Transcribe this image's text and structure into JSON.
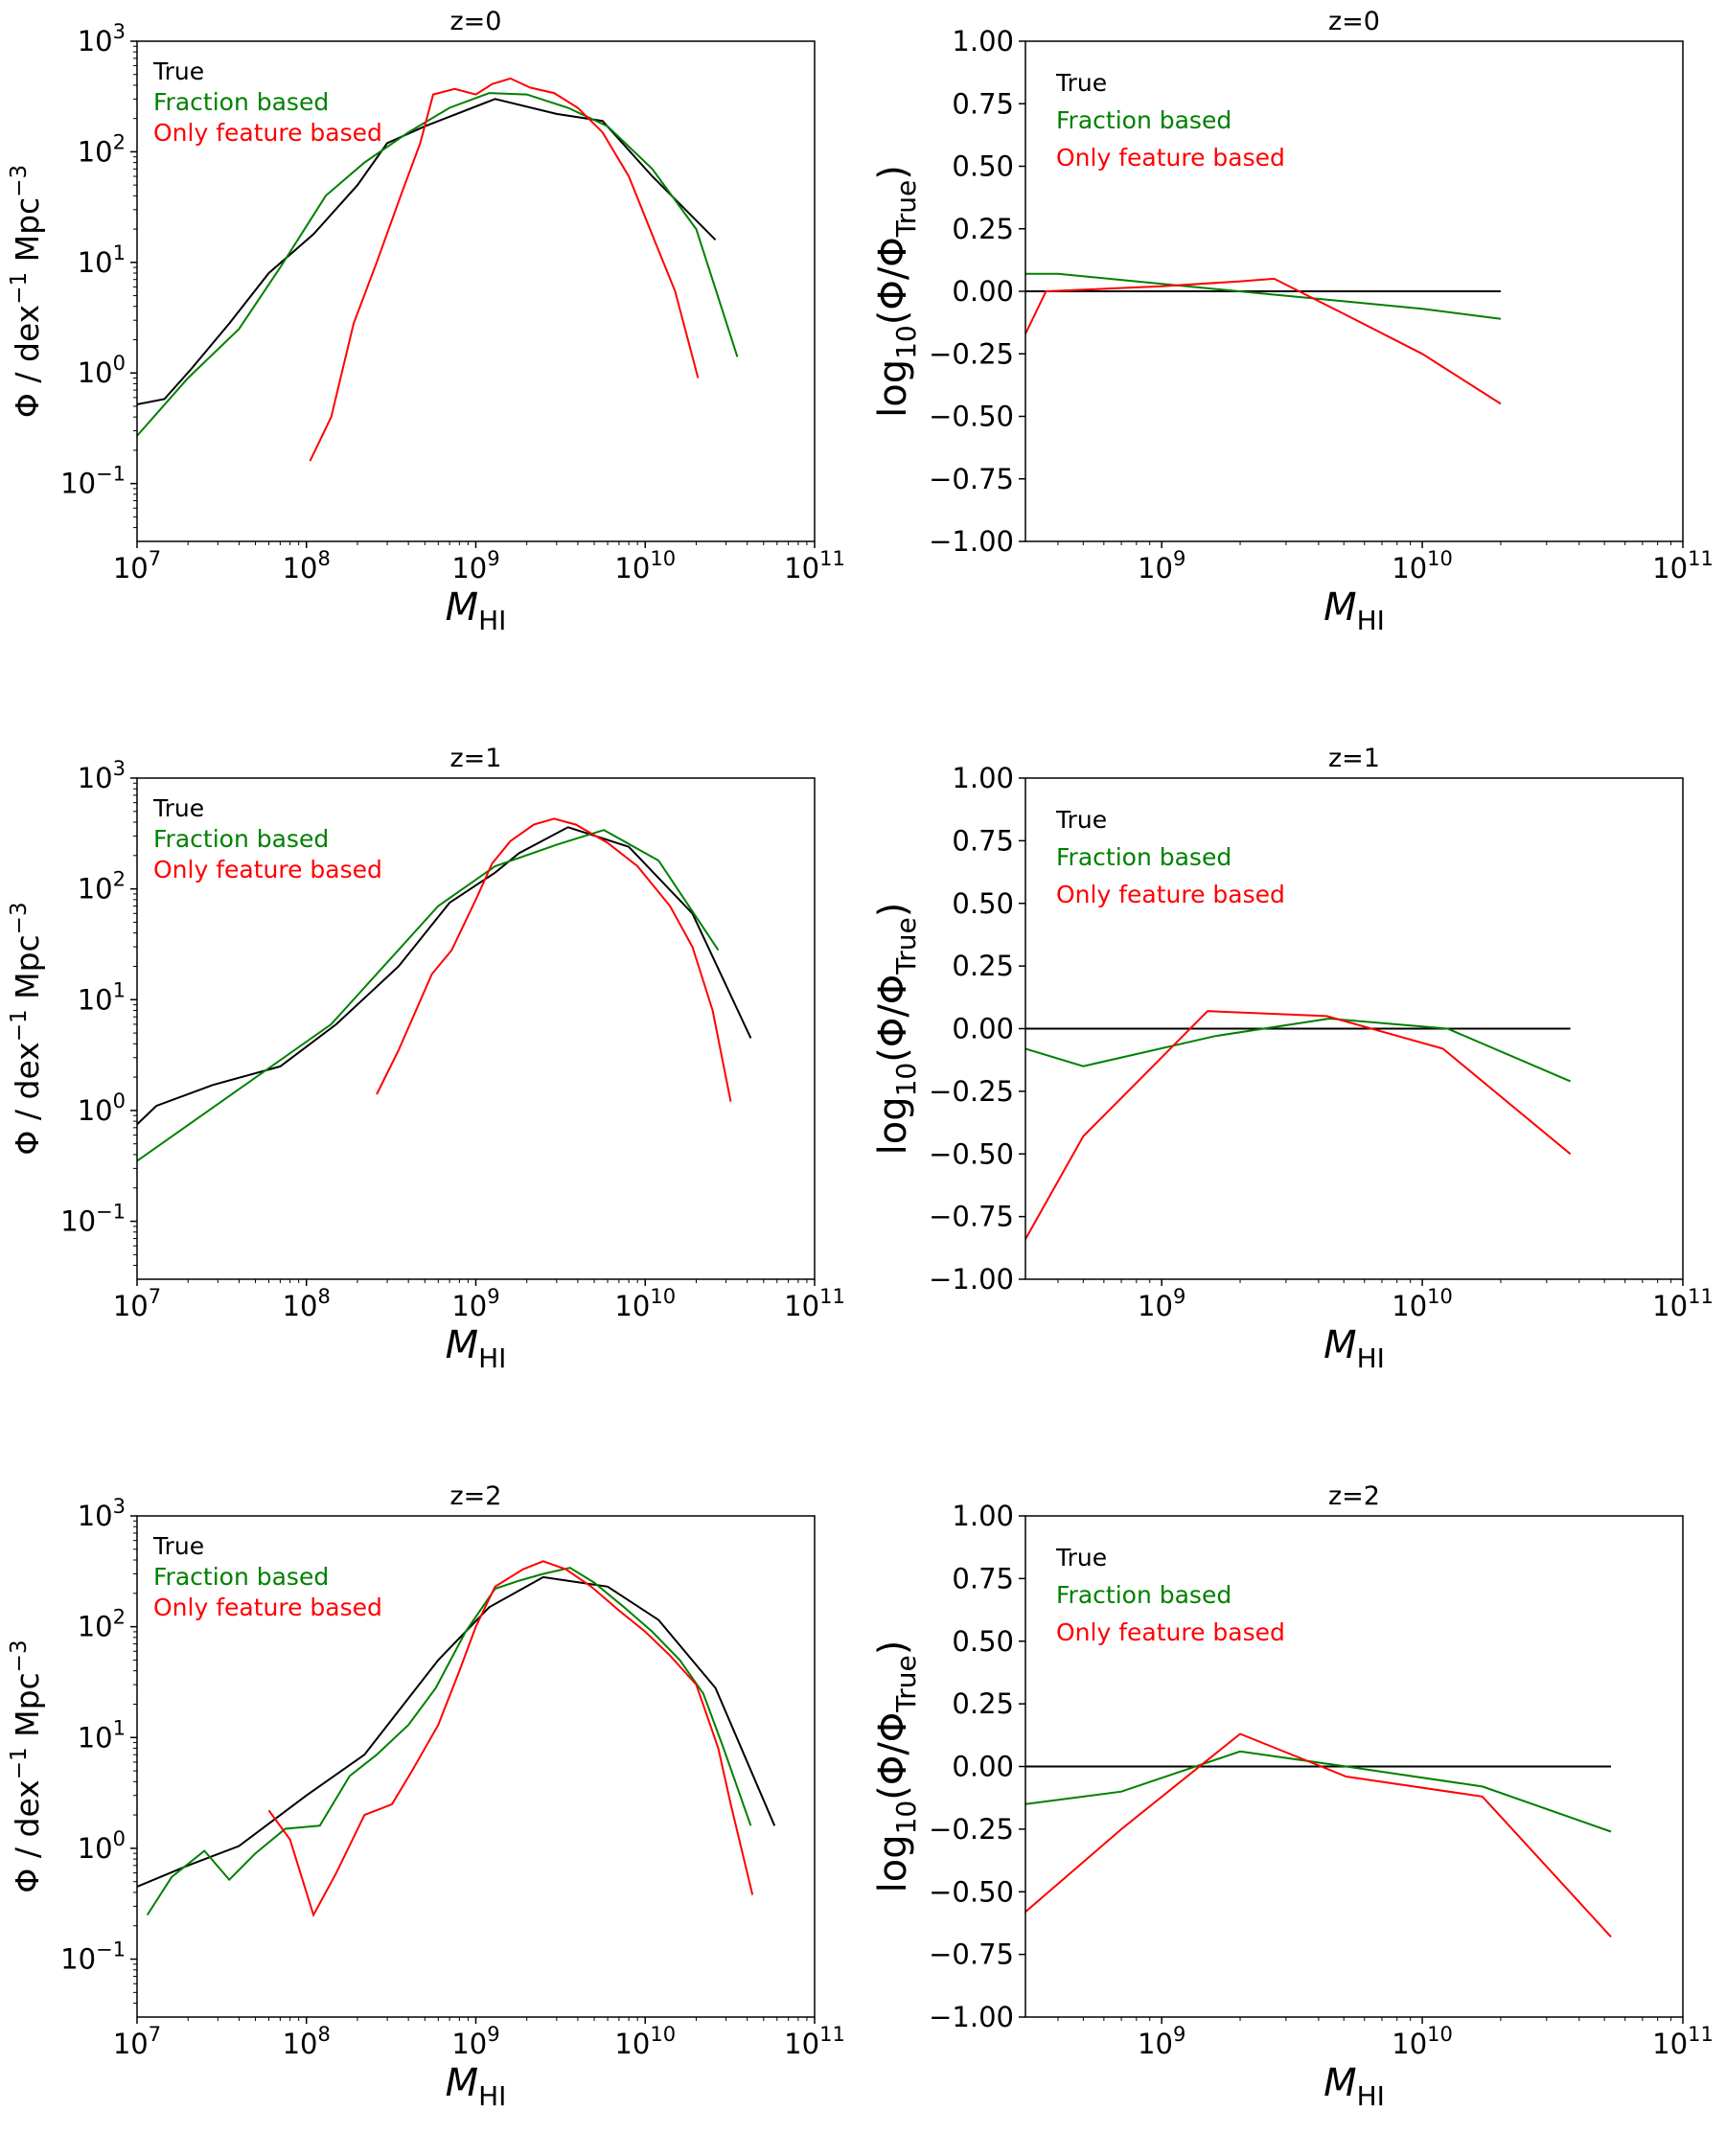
{
  "colors": {
    "true": "#000000",
    "fraction": "#008000",
    "feature": "#ff0000"
  },
  "legend": [
    "True",
    "Fraction based",
    "Only feature based"
  ],
  "chart_data": [
    {
      "type": "line",
      "title": "z=0",
      "xlabel_main": "M",
      "xlabel_sub": "HI",
      "ylabel_main": "Φ / dex",
      "ylabel_sup1": "−1",
      "ylabel_mid": " Mpc",
      "ylabel_sup2": "−3",
      "xscale": "log",
      "yscale": "log",
      "xlim": [
        10000000.0,
        100000000000.0
      ],
      "ylim": [
        0.03,
        1000
      ],
      "xticks": [
        {
          "base": "10",
          "exp": "7"
        },
        {
          "base": "10",
          "exp": "8"
        },
        {
          "base": "10",
          "exp": "9"
        },
        {
          "base": "10",
          "exp": "10"
        },
        {
          "base": "10",
          "exp": "11"
        }
      ],
      "yticks": [
        {
          "base": "10",
          "exp": "−1"
        },
        {
          "base": "10",
          "exp": "0"
        },
        {
          "base": "10",
          "exp": "1"
        },
        {
          "base": "10",
          "exp": "2"
        },
        {
          "base": "10",
          "exp": "3"
        }
      ],
      "series": [
        {
          "name": "True",
          "x": [
            10000000.0,
            14500000.0,
            21000000.0,
            35000000.0,
            60000000.0,
            110000000.0,
            200000000.0,
            300000000.0,
            500000000.0,
            1300000000.0,
            3000000000.0,
            5600000000.0,
            11000000000.0,
            26000000000.0
          ],
          "y": [
            0.52,
            0.58,
            1.1,
            2.8,
            8,
            18,
            50,
            120,
            170,
            300,
            220,
            190,
            60,
            16
          ]
        },
        {
          "name": "Fraction based",
          "x": [
            10000000.0,
            20000000.0,
            40000000.0,
            70000000.0,
            130000000.0,
            220000000.0,
            400000000.0,
            700000000.0,
            1200000000.0,
            2000000000.0,
            3500000000.0,
            6000000000.0,
            11000000000.0,
            20000000000.0,
            35000000000.0
          ],
          "y": [
            0.27,
            0.9,
            2.5,
            9,
            40,
            80,
            150,
            250,
            340,
            330,
            250,
            170,
            70,
            20,
            1.4
          ]
        },
        {
          "name": "Only feature based",
          "x": [
            105000000.0,
            140000000.0,
            190000000.0,
            260000000.0,
            360000000.0,
            470000000.0,
            560000000.0,
            750000000.0,
            1000000000.0,
            1250000000.0,
            1600000000.0,
            2100000000.0,
            2900000000.0,
            4000000000.0,
            5600000000.0,
            8000000000.0,
            11500000000.0,
            15000000000.0,
            20500000000.0
          ],
          "y": [
            0.16,
            0.4,
            2.8,
            10,
            40,
            120,
            330,
            370,
            330,
            410,
            460,
            380,
            340,
            250,
            150,
            60,
            15,
            5.5,
            0.9
          ]
        }
      ]
    },
    {
      "type": "line",
      "title": "z=0",
      "xlabel_main": "M",
      "xlabel_sub": "HI",
      "ylabel_main": "log",
      "ylabel_sub1": "10",
      "ylabel_mid": "(Φ/Φ",
      "ylabel_sub2": "True",
      "ylabel_end": ")",
      "xscale": "log",
      "yscale": "linear",
      "xlim": [
        300000000.0,
        100000000000.0
      ],
      "ylim": [
        -1,
        1
      ],
      "xticks": [
        {
          "base": "10",
          "exp": "9"
        },
        {
          "base": "10",
          "exp": "10"
        },
        {
          "base": "10",
          "exp": "11"
        }
      ],
      "yticks": [
        "−1.00",
        "−0.75",
        "−0.50",
        "−0.25",
        "0.00",
        "0.25",
        "0.50",
        "0.75",
        "1.00"
      ],
      "series": [
        {
          "name": "True",
          "x": [
            300000000.0,
            20000000000.0
          ],
          "y": [
            0,
            0
          ]
        },
        {
          "name": "Fraction based",
          "x": [
            300000000.0,
            400000000.0,
            1000000000.0,
            2500000000.0,
            5000000000.0,
            10000000000.0,
            20000000000.0
          ],
          "y": [
            0.07,
            0.07,
            0.03,
            -0.01,
            -0.04,
            -0.07,
            -0.11
          ]
        },
        {
          "name": "Only feature based",
          "x": [
            300000000.0,
            360000000.0,
            1000000000.0,
            2000000000.0,
            2700000000.0,
            5000000000.0,
            10000000000.0,
            20000000000.0
          ],
          "y": [
            -0.17,
            0.0,
            0.02,
            0.04,
            0.05,
            -0.09,
            -0.25,
            -0.45
          ]
        }
      ]
    },
    {
      "type": "line",
      "title": "z=1",
      "xlabel_main": "M",
      "xlabel_sub": "HI",
      "ylabel_main": "Φ / dex",
      "ylabel_sup1": "−1",
      "ylabel_mid": " Mpc",
      "ylabel_sup2": "−3",
      "xscale": "log",
      "yscale": "log",
      "xlim": [
        10000000.0,
        100000000000.0
      ],
      "ylim": [
        0.03,
        1000
      ],
      "xticks": [
        {
          "base": "10",
          "exp": "7"
        },
        {
          "base": "10",
          "exp": "8"
        },
        {
          "base": "10",
          "exp": "9"
        },
        {
          "base": "10",
          "exp": "10"
        },
        {
          "base": "10",
          "exp": "11"
        }
      ],
      "yticks": [
        {
          "base": "10",
          "exp": "−1"
        },
        {
          "base": "10",
          "exp": "0"
        },
        {
          "base": "10",
          "exp": "1"
        },
        {
          "base": "10",
          "exp": "2"
        },
        {
          "base": "10",
          "exp": "3"
        }
      ],
      "series": [
        {
          "name": "True",
          "x": [
            10000000.0,
            13000000.0,
            28000000.0,
            70000000.0,
            150000000.0,
            350000000.0,
            700000000.0,
            1300000000.0,
            1800000000.0,
            3500000000.0,
            8000000000.0,
            19000000000.0,
            42000000000.0
          ],
          "y": [
            0.75,
            1.1,
            1.7,
            2.5,
            6,
            20,
            75,
            140,
            210,
            360,
            240,
            60,
            4.5
          ]
        },
        {
          "name": "Fraction based",
          "x": [
            10000000.0,
            140000000.0,
            600000000.0,
            1300000000.0,
            3000000000.0,
            5700000000.0,
            12000000000.0,
            27000000000.0
          ],
          "y": [
            0.35,
            6,
            70,
            160,
            250,
            340,
            180,
            28
          ]
        },
        {
          "name": "Only feature based",
          "x": [
            260000000.0,
            350000000.0,
            550000000.0,
            720000000.0,
            1000000000.0,
            1250000000.0,
            1600000000.0,
            2200000000.0,
            2900000000.0,
            3900000000.0,
            6000000000.0,
            9000000000.0,
            14000000000.0,
            19000000000.0,
            25000000000.0,
            32000000000.0
          ],
          "y": [
            1.4,
            3.5,
            17,
            28,
            80,
            170,
            270,
            380,
            430,
            380,
            260,
            160,
            70,
            30,
            8,
            1.2
          ]
        }
      ]
    },
    {
      "type": "line",
      "title": "z=1",
      "xlabel_main": "M",
      "xlabel_sub": "HI",
      "ylabel_main": "log",
      "ylabel_sub1": "10",
      "ylabel_mid": "(Φ/Φ",
      "ylabel_sub2": "True",
      "ylabel_end": ")",
      "xscale": "log",
      "yscale": "linear",
      "xlim": [
        300000000.0,
        100000000000.0
      ],
      "ylim": [
        -1,
        1
      ],
      "xticks": [
        {
          "base": "10",
          "exp": "9"
        },
        {
          "base": "10",
          "exp": "10"
        },
        {
          "base": "10",
          "exp": "11"
        }
      ],
      "yticks": [
        "−1.00",
        "−0.75",
        "−0.50",
        "−0.25",
        "0.00",
        "0.25",
        "0.50",
        "0.75",
        "1.00"
      ],
      "series": [
        {
          "name": "True",
          "x": [
            300000000.0,
            37000000000.0
          ],
          "y": [
            0,
            0
          ]
        },
        {
          "name": "Fraction based",
          "x": [
            300000000.0,
            500000000.0,
            1600000000.0,
            4400000000.0,
            12500000000.0,
            37000000000.0
          ],
          "y": [
            -0.08,
            -0.15,
            -0.03,
            0.04,
            -0.0,
            -0.21
          ]
        },
        {
          "name": "Only feature based",
          "x": [
            300000000.0,
            500000000.0,
            1500000000.0,
            4300000000.0,
            12000000000.0,
            37000000000.0
          ],
          "y": [
            -0.84,
            -0.43,
            0.07,
            0.05,
            -0.08,
            -0.5
          ]
        }
      ]
    },
    {
      "type": "line",
      "title": "z=2",
      "xlabel_main": "M",
      "xlabel_sub": "HI",
      "ylabel_main": "Φ / dex",
      "ylabel_sup1": "−1",
      "ylabel_mid": " Mpc",
      "ylabel_sup2": "−3",
      "xscale": "log",
      "yscale": "log",
      "xlim": [
        10000000.0,
        100000000000.0
      ],
      "ylim": [
        0.03,
        1000
      ],
      "xticks": [
        {
          "base": "10",
          "exp": "7"
        },
        {
          "base": "10",
          "exp": "8"
        },
        {
          "base": "10",
          "exp": "9"
        },
        {
          "base": "10",
          "exp": "10"
        },
        {
          "base": "10",
          "exp": "11"
        }
      ],
      "yticks": [
        {
          "base": "10",
          "exp": "−1"
        },
        {
          "base": "10",
          "exp": "0"
        },
        {
          "base": "10",
          "exp": "1"
        },
        {
          "base": "10",
          "exp": "2"
        },
        {
          "base": "10",
          "exp": "3"
        }
      ],
      "series": [
        {
          "name": "True",
          "x": [
            10000000.0,
            20000000.0,
            40000000.0,
            100000000.0,
            220000000.0,
            600000000.0,
            1200000000.0,
            2500000000.0,
            6000000000.0,
            12000000000.0,
            26000000000.0,
            58000000000.0
          ],
          "y": [
            0.45,
            0.7,
            1.05,
            3,
            7,
            50,
            150,
            280,
            230,
            115,
            28,
            1.6
          ]
        },
        {
          "name": "Fraction based",
          "x": [
            11500000.0,
            16000000.0,
            25000000.0,
            35000000.0,
            50000000.0,
            75000000.0,
            120000000.0,
            180000000.0,
            260000000.0,
            400000000.0,
            580000000.0,
            870000000.0,
            1300000000.0,
            1800000000.0,
            2500000000.0,
            3600000000.0,
            5000000000.0,
            7500000000.0,
            11000000000.0,
            16000000000.0,
            22000000000.0,
            29000000000.0,
            42000000000.0
          ],
          "y": [
            0.25,
            0.55,
            0.95,
            0.52,
            0.9,
            1.5,
            1.6,
            4.5,
            7,
            13,
            28,
            90,
            220,
            260,
            300,
            340,
            250,
            150,
            90,
            50,
            25,
            8,
            1.6
          ]
        },
        {
          "name": "Only feature based",
          "x": [
            60000000.0,
            80000000.0,
            110000000.0,
            150000000.0,
            220000000.0,
            320000000.0,
            420000000.0,
            600000000.0,
            800000000.0,
            1000000000.0,
            1300000000.0,
            1900000000.0,
            2500000000.0,
            3400000000.0,
            4800000000.0,
            7000000000.0,
            10000000000.0,
            14000000000.0,
            20000000000.0,
            27000000000.0,
            32000000000.0,
            43000000000.0
          ],
          "y": [
            2.2,
            1.2,
            0.25,
            0.6,
            2,
            2.5,
            5,
            13,
            40,
            100,
            230,
            330,
            390,
            330,
            230,
            140,
            90,
            55,
            30,
            8,
            2.5,
            0.38
          ]
        }
      ]
    },
    {
      "type": "line",
      "title": "z=2",
      "xlabel_main": "M",
      "xlabel_sub": "HI",
      "ylabel_main": "log",
      "ylabel_sub1": "10",
      "ylabel_mid": "(Φ/Φ",
      "ylabel_sub2": "True",
      "ylabel_end": ")",
      "xscale": "log",
      "yscale": "linear",
      "xlim": [
        300000000.0,
        100000000000.0
      ],
      "ylim": [
        -1,
        1
      ],
      "xticks": [
        {
          "base": "10",
          "exp": "9"
        },
        {
          "base": "10",
          "exp": "10"
        },
        {
          "base": "10",
          "exp": "11"
        }
      ],
      "yticks": [
        "−1.00",
        "−0.75",
        "−0.50",
        "−0.25",
        "0.00",
        "0.25",
        "0.50",
        "0.75",
        "1.00"
      ],
      "series": [
        {
          "name": "True",
          "x": [
            300000000.0,
            53000000000.0
          ],
          "y": [
            0,
            0
          ]
        },
        {
          "name": "Fraction based",
          "x": [
            300000000.0,
            700000000.0,
            2000000000.0,
            5100000000.0,
            17000000000.0,
            53000000000.0
          ],
          "y": [
            -0.15,
            -0.1,
            0.06,
            0.0,
            -0.08,
            -0.26
          ]
        },
        {
          "name": "Only feature based",
          "x": [
            300000000.0,
            700000000.0,
            2000000000.0,
            5100000000.0,
            17000000000.0,
            53000000000.0
          ],
          "y": [
            -0.58,
            -0.25,
            0.13,
            -0.04,
            -0.12,
            -0.68
          ]
        }
      ]
    }
  ]
}
